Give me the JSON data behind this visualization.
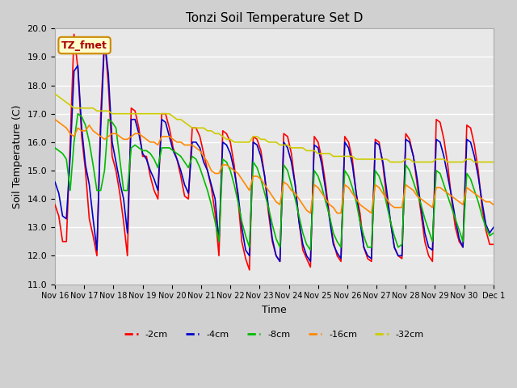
{
  "title": "Tonzi Soil Temperature Set D",
  "xlabel": "Time",
  "ylabel": "Soil Temperature (C)",
  "ylim": [
    11.0,
    20.0
  ],
  "yticks": [
    11.0,
    12.0,
    13.0,
    14.0,
    15.0,
    16.0,
    17.0,
    18.0,
    19.0,
    20.0
  ],
  "colors": {
    "-2cm": "#ff0000",
    "-4cm": "#0000cc",
    "-8cm": "#00bb00",
    "-16cm": "#ff8800",
    "-32cm": "#cccc00"
  },
  "legend_label": "TZ_fmet",
  "legend_box_facecolor": "#ffffcc",
  "legend_box_edgecolor": "#cc8800",
  "fig_facecolor": "#d0d0d0",
  "axes_facecolor": "#e8e8e8",
  "grid_color": "#ffffff",
  "x_tick_labels": [
    "Nov 16",
    "Nov 17",
    "Nov 18",
    "Nov 19",
    "Nov 20",
    "Nov 21",
    "Nov 22",
    "Nov 23",
    "Nov 24",
    "Nov 25",
    "Nov 26",
    "Nov 27",
    "Nov 28",
    "Nov 29",
    "Nov 30",
    "Dec 1"
  ],
  "n_points_per_day": 8,
  "series": {
    "-2cm": [
      13.8,
      13.4,
      12.5,
      12.5,
      16.0,
      19.8,
      18.6,
      16.2,
      15.0,
      13.3,
      12.7,
      12.0,
      17.0,
      19.7,
      18.0,
      15.5,
      15.0,
      14.2,
      13.2,
      12.0,
      17.2,
      17.1,
      16.5,
      15.5,
      15.5,
      14.8,
      14.3,
      14.0,
      17.0,
      17.0,
      16.5,
      15.8,
      15.4,
      14.8,
      14.1,
      14.0,
      16.5,
      16.5,
      16.2,
      15.6,
      15.0,
      14.4,
      13.5,
      12.0,
      16.4,
      16.3,
      16.0,
      15.2,
      14.0,
      12.5,
      11.9,
      11.5,
      16.2,
      16.1,
      15.7,
      14.8,
      13.5,
      12.5,
      12.0,
      11.8,
      16.3,
      16.2,
      15.6,
      14.5,
      13.2,
      12.2,
      11.9,
      11.6,
      16.2,
      16.0,
      15.4,
      14.5,
      13.4,
      12.5,
      12.0,
      11.8,
      16.2,
      16.0,
      15.4,
      14.2,
      13.5,
      12.3,
      11.9,
      11.8,
      16.1,
      16.0,
      15.2,
      14.0,
      13.2,
      12.3,
      12.0,
      11.9,
      16.3,
      16.1,
      15.5,
      14.5,
      13.5,
      12.5,
      12.0,
      11.8,
      16.8,
      16.7,
      16.1,
      15.2,
      14.0,
      13.0,
      12.5,
      12.3,
      16.6,
      16.5,
      15.9,
      15.0,
      13.7,
      12.9,
      12.4,
      12.4
    ],
    "-4cm": [
      14.6,
      14.2,
      13.4,
      13.3,
      15.5,
      18.5,
      18.7,
      16.5,
      15.2,
      14.5,
      13.3,
      12.2,
      16.5,
      19.6,
      18.4,
      16.0,
      15.3,
      14.6,
      14.0,
      12.8,
      16.8,
      16.8,
      16.3,
      15.6,
      15.4,
      15.0,
      14.7,
      14.3,
      16.8,
      16.7,
      16.2,
      15.7,
      15.4,
      15.0,
      14.5,
      14.2,
      16.0,
      16.0,
      15.8,
      15.3,
      15.0,
      14.5,
      14.0,
      12.5,
      16.0,
      15.9,
      15.6,
      15.0,
      14.2,
      13.0,
      12.2,
      12.0,
      16.0,
      15.9,
      15.5,
      14.8,
      13.7,
      12.6,
      12.0,
      11.8,
      16.0,
      15.8,
      15.3,
      14.5,
      13.2,
      12.4,
      12.0,
      11.8,
      15.9,
      15.8,
      15.2,
      14.3,
      13.3,
      12.4,
      12.1,
      11.9,
      16.0,
      15.8,
      15.2,
      14.2,
      13.2,
      12.3,
      12.0,
      11.9,
      16.0,
      15.9,
      15.3,
      14.3,
      13.2,
      12.3,
      12.0,
      12.0,
      16.1,
      16.0,
      15.5,
      14.7,
      13.7,
      12.8,
      12.3,
      12.2,
      16.1,
      16.0,
      15.5,
      14.8,
      14.1,
      13.3,
      12.6,
      12.3,
      16.1,
      16.0,
      15.5,
      14.8,
      13.9,
      13.1,
      12.8,
      13.0
    ],
    "-8cm": [
      15.8,
      15.7,
      15.6,
      15.4,
      14.3,
      16.0,
      17.0,
      16.9,
      16.6,
      16.0,
      15.2,
      14.3,
      14.3,
      15.0,
      16.8,
      16.7,
      16.5,
      15.4,
      14.3,
      14.3,
      15.8,
      15.9,
      15.8,
      15.7,
      15.7,
      15.6,
      15.4,
      15.1,
      15.8,
      15.8,
      15.8,
      15.7,
      15.6,
      15.5,
      15.3,
      15.1,
      15.5,
      15.4,
      15.1,
      14.7,
      14.3,
      13.8,
      13.2,
      12.5,
      15.4,
      15.3,
      15.0,
      14.5,
      13.9,
      13.2,
      12.7,
      12.3,
      15.3,
      15.1,
      14.7,
      14.2,
      13.7,
      13.1,
      12.6,
      12.3,
      15.2,
      15.0,
      14.5,
      14.0,
      13.4,
      12.8,
      12.4,
      12.2,
      15.0,
      14.8,
      14.4,
      13.9,
      13.4,
      12.8,
      12.5,
      12.3,
      15.0,
      14.8,
      14.4,
      13.9,
      13.2,
      12.7,
      12.3,
      12.3,
      15.0,
      14.8,
      14.4,
      13.8,
      13.2,
      12.7,
      12.3,
      12.4,
      15.2,
      15.0,
      14.6,
      14.2,
      13.8,
      13.3,
      12.9,
      12.5,
      15.0,
      14.9,
      14.5,
      14.1,
      13.7,
      13.3,
      12.9,
      12.5,
      14.9,
      14.7,
      14.3,
      13.9,
      13.4,
      13.0,
      12.7,
      12.8
    ],
    "-16cm": [
      16.8,
      16.7,
      16.6,
      16.5,
      16.3,
      16.2,
      16.5,
      16.4,
      16.4,
      16.6,
      16.4,
      16.3,
      16.2,
      16.1,
      16.2,
      16.3,
      16.3,
      16.2,
      16.1,
      16.1,
      16.2,
      16.3,
      16.3,
      16.2,
      16.1,
      16.0,
      16.0,
      15.9,
      16.2,
      16.2,
      16.2,
      16.1,
      16.0,
      16.0,
      15.9,
      15.9,
      15.9,
      15.8,
      15.7,
      15.5,
      15.3,
      15.0,
      14.9,
      14.9,
      15.2,
      15.2,
      15.1,
      15.0,
      14.9,
      14.7,
      14.5,
      14.3,
      14.8,
      14.8,
      14.7,
      14.5,
      14.3,
      14.1,
      13.9,
      13.8,
      14.6,
      14.5,
      14.3,
      14.2,
      14.0,
      13.8,
      13.6,
      13.5,
      14.5,
      14.4,
      14.2,
      14.0,
      13.8,
      13.7,
      13.5,
      13.5,
      14.5,
      14.4,
      14.2,
      14.0,
      13.8,
      13.7,
      13.6,
      13.5,
      14.5,
      14.4,
      14.2,
      14.0,
      13.8,
      13.7,
      13.7,
      13.7,
      14.5,
      14.4,
      14.3,
      14.1,
      14.0,
      13.9,
      13.8,
      13.7,
      14.4,
      14.4,
      14.3,
      14.2,
      14.1,
      14.0,
      13.9,
      13.8,
      14.4,
      14.3,
      14.2,
      14.1,
      14.0,
      13.9,
      13.9,
      13.8
    ],
    "-32cm": [
      17.7,
      17.6,
      17.5,
      17.4,
      17.3,
      17.2,
      17.2,
      17.2,
      17.2,
      17.2,
      17.2,
      17.1,
      17.1,
      17.1,
      17.1,
      17.0,
      17.0,
      17.0,
      17.0,
      17.0,
      17.0,
      17.0,
      17.0,
      17.0,
      17.0,
      17.0,
      17.0,
      17.0,
      17.0,
      17.0,
      17.0,
      16.9,
      16.8,
      16.8,
      16.7,
      16.6,
      16.5,
      16.5,
      16.5,
      16.5,
      16.4,
      16.4,
      16.3,
      16.3,
      16.2,
      16.1,
      16.1,
      16.0,
      16.0,
      16.0,
      16.0,
      16.0,
      16.2,
      16.2,
      16.1,
      16.1,
      16.0,
      16.0,
      16.0,
      15.9,
      15.9,
      15.9,
      15.8,
      15.8,
      15.8,
      15.8,
      15.7,
      15.7,
      15.7,
      15.6,
      15.6,
      15.6,
      15.6,
      15.5,
      15.5,
      15.5,
      15.5,
      15.5,
      15.5,
      15.4,
      15.4,
      15.4,
      15.4,
      15.4,
      15.4,
      15.4,
      15.4,
      15.4,
      15.3,
      15.3,
      15.3,
      15.3,
      15.4,
      15.4,
      15.3,
      15.3,
      15.3,
      15.3,
      15.3,
      15.3,
      15.4,
      15.4,
      15.4,
      15.3,
      15.3,
      15.3,
      15.3,
      15.3,
      15.4,
      15.4,
      15.3,
      15.3,
      15.3,
      15.3,
      15.3,
      15.3
    ]
  }
}
